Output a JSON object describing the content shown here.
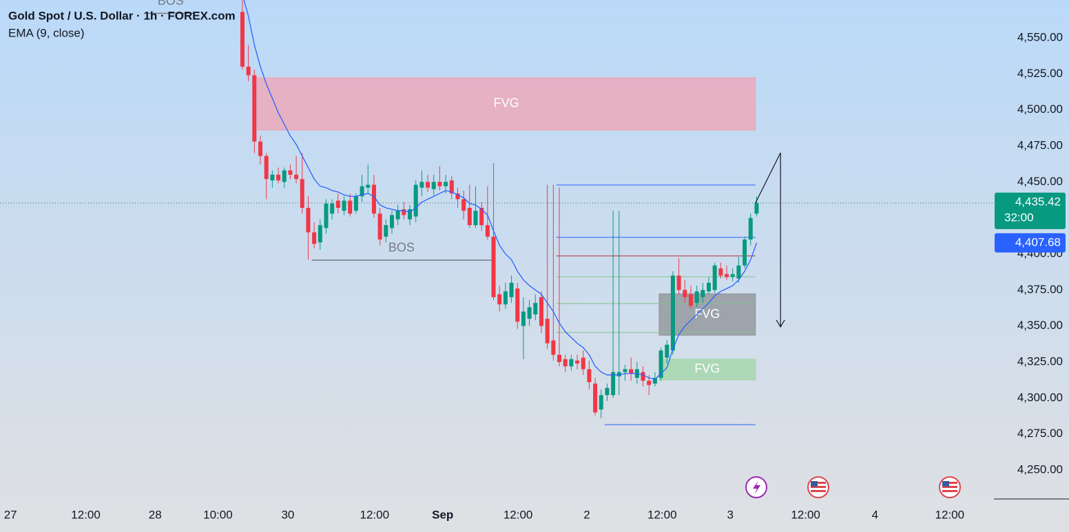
{
  "chart_data": {
    "type": "candlestick",
    "title": "Gold Spot / U.S. Dollar · 1h · FOREX.com",
    "xlim": [
      -40.55,
      125.35
    ],
    "xticks": [
      {
        "value": -38.8,
        "label": "27"
      },
      {
        "value": -26.2,
        "label": "12:00"
      },
      {
        "value": -14.6,
        "label": "28"
      },
      {
        "value": -4.1,
        "label": "10:00"
      },
      {
        "value": 7.6,
        "label": "30"
      },
      {
        "value": 22.1,
        "label": "12:00"
      },
      {
        "value": 33.5,
        "label": "Sep"
      },
      {
        "value": 46.1,
        "label": "12:00"
      },
      {
        "value": 57.6,
        "label": "2"
      },
      {
        "value": 70.2,
        "label": "12:00"
      },
      {
        "value": 81.6,
        "label": "3"
      },
      {
        "value": 94.2,
        "label": "12:00"
      },
      {
        "value": 105.8,
        "label": "4"
      },
      {
        "value": 118.3,
        "label": "12:00"
      }
    ],
    "ylim": [
      4229.93,
      4576.27
    ],
    "yticks": [
      {
        "value": 4250,
        "label": "4,250.00"
      },
      {
        "value": 4275,
        "label": "4,275.00"
      },
      {
        "value": 4300,
        "label": "4,300.00"
      },
      {
        "value": 4325,
        "label": "4,325.00"
      },
      {
        "value": 4350,
        "label": "4,350.00"
      },
      {
        "value": 4375,
        "label": "4,375.00"
      },
      {
        "value": 4400,
        "label": "4,400.00"
      },
      {
        "value": 4425,
        "label": "4,425.00"
      },
      {
        "value": 4450,
        "label": "4,450.00"
      },
      {
        "value": 4475,
        "label": "4,475.00"
      },
      {
        "value": 4500,
        "label": "4,500.00"
      },
      {
        "value": 4525,
        "label": "4,525.00"
      },
      {
        "value": 4550,
        "label": "4,550.00"
      }
    ],
    "up_color": "#089981",
    "down_color": "#f23645",
    "open": [
      4568,
      4530,
      4524,
      4478,
      4468,
      4451,
      4455,
      4450,
      4458,
      4455,
      4452,
      4432,
      4415,
      4408,
      4418,
      4428,
      4437,
      4430,
      4437,
      4430,
      4440,
      4446,
      4448,
      4428,
      4412,
      4418,
      4424,
      4431,
      4424,
      4426,
      4446,
      4450,
      4445,
      4450,
      4447,
      4451,
      4442,
      4438,
      4432,
      4420,
      4432,
      4420,
      4412,
      4372,
      4365,
      4370,
      4376,
      4350,
      4355,
      4358,
      4370,
      4355,
      4340,
      4330,
      4327,
      4322,
      4326,
      4328,
      4320,
      4310,
      4292,
      4302,
      4302,
      4315,
      4318,
      4320,
      4314,
      4318,
      4312,
      4310,
      4314,
      4328,
      4333,
      4385,
      4375,
      4372,
      4366,
      4370,
      4374,
      4375,
      4390,
      4386,
      4384,
      4383,
      4392,
      4410,
      4428
    ],
    "high": [
      4576,
      4545,
      4528,
      4482,
      4470,
      4458,
      4460,
      4460,
      4462,
      4468,
      4470,
      4440,
      4422,
      4424,
      4438,
      4438,
      4442,
      4440,
      4442,
      4442,
      4455,
      4462,
      4455,
      4432,
      4424,
      4430,
      4434,
      4436,
      4434,
      4451,
      4458,
      4455,
      4455,
      4461,
      4455,
      4454,
      4446,
      4444,
      4448,
      4447,
      4436,
      4447,
      4463,
      4378,
      4380,
      4385,
      4380,
      4370,
      4368,
      4372,
      4374,
      4448,
      4448,
      4446,
      4330,
      4330,
      4330,
      4333,
      4326,
      4314,
      4306,
      4310,
      4430,
      4430,
      4323,
      4328,
      4325,
      4322,
      4316,
      4318,
      4335,
      4340,
      4388,
      4397,
      4382,
      4378,
      4378,
      4380,
      4384,
      4394,
      4394,
      4392,
      4390,
      4398,
      4412,
      4428,
      4440
    ],
    "low": [
      4528,
      4520,
      4470,
      4462,
      4438,
      4446,
      4449,
      4446,
      4452,
      4449,
      4428,
      4396,
      4404,
      4403,
      4414,
      4424,
      4428,
      4427,
      4426,
      4428,
      4436,
      4442,
      4425,
      4406,
      4408,
      4414,
      4420,
      4424,
      4420,
      4422,
      4440,
      4443,
      4441,
      4444,
      4442,
      4438,
      4432,
      4424,
      4418,
      4418,
      4416,
      4410,
      4368,
      4360,
      4362,
      4366,
      4348,
      4327,
      4350,
      4354,
      4345,
      4334,
      4326,
      4322,
      4318,
      4319,
      4320,
      4316,
      4306,
      4288,
      4286,
      4298,
      4300,
      4302,
      4312,
      4312,
      4310,
      4308,
      4302,
      4308,
      4312,
      4324,
      4330,
      4372,
      4366,
      4362,
      4363,
      4366,
      4372,
      4373,
      4383,
      4382,
      4381,
      4380,
      4390,
      4406,
      4426
    ],
    "close": [
      4530,
      4524,
      4478,
      4468,
      4452,
      4455,
      4451,
      4458,
      4455,
      4452,
      4432,
      4415,
      4407,
      4420,
      4435,
      4435,
      4432,
      4437,
      4428,
      4440,
      4447,
      4448,
      4428,
      4410,
      4420,
      4427,
      4430,
      4427,
      4431,
      4448,
      4450,
      4446,
      4450,
      4447,
      4450,
      4442,
      4438,
      4430,
      4420,
      4430,
      4420,
      4412,
      4370,
      4365,
      4374,
      4380,
      4353,
      4360,
      4363,
      4366,
      4350,
      4338,
      4330,
      4325,
      4322,
      4327,
      4324,
      4320,
      4311,
      4290,
      4302,
      4307,
      4318,
      4318,
      4320,
      4317,
      4320,
      4312,
      4309,
      4314,
      4333,
      4337,
      4385,
      4375,
      4370,
      4364,
      4374,
      4375,
      4380,
      4392,
      4385,
      4384,
      4386,
      4392,
      4410,
      4425,
      4435.42
    ],
    "series": [
      {
        "name": "EMA (9, close)",
        "color": "#2962ff",
        "values": [
          4580,
          4565,
          4545,
          4530,
          4518,
          4508,
          4498,
          4490,
          4482,
          4476,
          4468,
          4460,
          4452,
          4447,
          4446,
          4444,
          4443,
          4441,
          4440,
          4440,
          4441,
          4442,
          4440,
          4434,
          4432,
          4431,
          4430,
          4430,
          4429,
          4432,
          4436,
          4438,
          4440,
          4442,
          4444,
          4443,
          4441,
          4439,
          4435,
          4434,
          4431,
          4427,
          4416,
          4406,
          4400,
          4396,
          4388,
          4382,
          4378,
          4375,
          4372,
          4366,
          4360,
          4352,
          4346,
          4342,
          4338,
          4335,
          4330,
          4322,
          4318,
          4316,
          4316,
          4316,
          4317,
          4317,
          4317,
          4316,
          4314,
          4313,
          4317,
          4321,
          4334,
          4344,
          4350,
          4354,
          4358,
          4362,
          4366,
          4371,
          4374,
          4376,
          4378,
          4382,
          4388,
          4396,
          4407.68
        ]
      }
    ],
    "last_price": {
      "value": 4435.42,
      "label": "4,435.42",
      "countdown": "32:00",
      "color": "#089981"
    },
    "ema_last": {
      "value": 4407.68,
      "label": "4,407.68",
      "color": "#2962ff"
    },
    "zones": [
      {
        "label": "FVG",
        "x": [
          2.5,
          85.8
        ],
        "y": [
          4486.0,
          4522.3
        ],
        "color": "#f2a3b3"
      },
      {
        "label": "FVG",
        "x": [
          69.7,
          85.8
        ],
        "y": [
          4343.6,
          4372.3
        ],
        "color": "#8d9096"
      },
      {
        "label": "FVG",
        "x": [
          69.7,
          85.8
        ],
        "y": [
          4312.6,
          4326.9
        ],
        "color": "#9fd6a4"
      }
    ],
    "levels": [
      {
        "label": "BOS",
        "x": [
          11.6,
          41.6
        ],
        "y": 4395.7,
        "color": "#787b86"
      },
      {
        "label": "BOS",
        "x": [
          -16.0,
          -8.0
        ],
        "y": 4567.0,
        "color": "#787b86"
      }
    ],
    "lines": [
      {
        "x": [
          52.5,
          85.8
        ],
        "y": 4447.8,
        "color": "#2962ff"
      },
      {
        "x": [
          52.5,
          85.8
        ],
        "y": 4411.5,
        "color": "#2962ff"
      },
      {
        "x": [
          52.5,
          85.8
        ],
        "y": 4398.6,
        "color": "#b22833"
      },
      {
        "x": [
          52.5,
          85.8
        ],
        "y": 4384.2,
        "color": "#7fc48a"
      },
      {
        "x": [
          52.5,
          85.8
        ],
        "y": 4365.6,
        "color": "#7fc48a"
      },
      {
        "x": [
          52.5,
          85.8
        ],
        "y": 4345.5,
        "color": "#7fc48a"
      },
      {
        "x": [
          60.6,
          85.8
        ],
        "y": 4281.5,
        "color": "#2962ff"
      }
    ],
    "arrow": {
      "x": [
        85.8,
        90.0,
        90.0
      ],
      "y": [
        4435.3,
        4470.2,
        4349.4
      ],
      "color": "#131722"
    }
  }
}
